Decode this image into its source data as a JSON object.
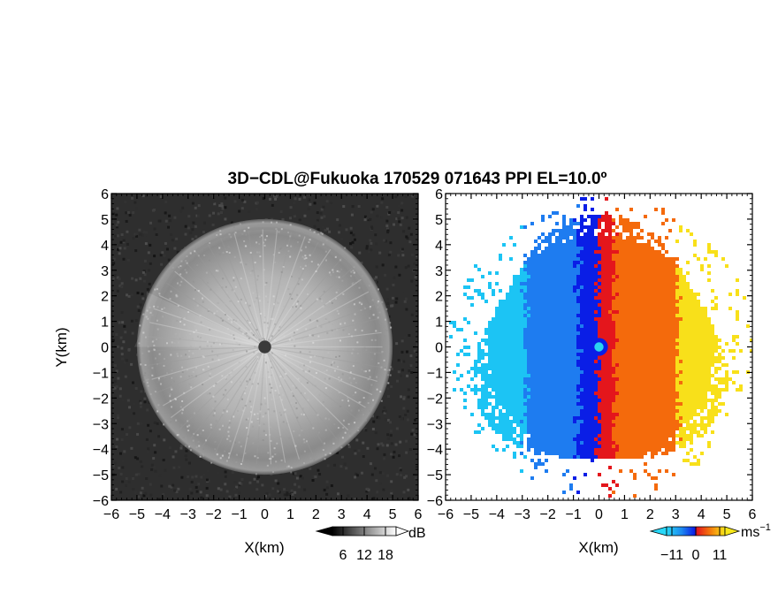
{
  "chart_data": [
    {
      "type": "heatmap",
      "panel": "left",
      "title": "3D−CDL@Fukuoka 170529 071643 PPI EL=10.0º",
      "xlabel": "X(km)",
      "ylabel": "Y(km)",
      "xlim": [
        -6,
        6
      ],
      "ylim": [
        -6,
        6
      ],
      "x_ticks": [
        "−6",
        "−5",
        "−4",
        "−3",
        "−2",
        "−1",
        "0",
        "1",
        "2",
        "3",
        "4",
        "5",
        "6"
      ],
      "y_ticks": [
        "−6",
        "−5",
        "−4",
        "−3",
        "−2",
        "−1",
        "0",
        "1",
        "2",
        "3",
        "4",
        "5",
        "6"
      ],
      "colorbar": {
        "unit": "dB",
        "ticks": [
          "6",
          "12",
          "18"
        ],
        "range": [
          6,
          18
        ],
        "colormap": "grayscale"
      },
      "description_values": {
        "echo_radius_km": 5.0,
        "blank_center_radius_km": 0.25,
        "sector_wedge_deg": [
          155,
          180
        ]
      }
    },
    {
      "type": "heatmap",
      "panel": "right",
      "xlabel": "X(km)",
      "xlim": [
        -6,
        6
      ],
      "ylim": [
        -6,
        6
      ],
      "x_ticks": [
        "−6",
        "−5",
        "−4",
        "−3",
        "−2",
        "−1",
        "0",
        "1",
        "2",
        "3",
        "4",
        "5",
        "6"
      ],
      "y_ticks": [
        "−6",
        "−5",
        "−4",
        "−3",
        "−2",
        "−1",
        "0",
        "1",
        "2",
        "3",
        "4",
        "5",
        "6"
      ],
      "colorbar": {
        "unit": "ms",
        "unit_exponent": "−1",
        "ticks": [
          "−11",
          "0",
          "11"
        ],
        "range": [
          -11,
          11
        ],
        "colormap": "blue-cyan-red-orange-yellow"
      },
      "description_values": {
        "echo_radius_km": 5.2,
        "zero_velocity_x_km": -0.1
      }
    }
  ],
  "colors": {
    "vel_neg_strong": "#0a1ee6",
    "vel_neg_mid": "#1e7cf0",
    "vel_neg_weak": "#1cc4f4",
    "vel_pos_weak": "#e4161c",
    "vel_pos_mid": "#f46a0c",
    "vel_pos_strong": "#f8e01a",
    "center": "#2ad4f0"
  }
}
